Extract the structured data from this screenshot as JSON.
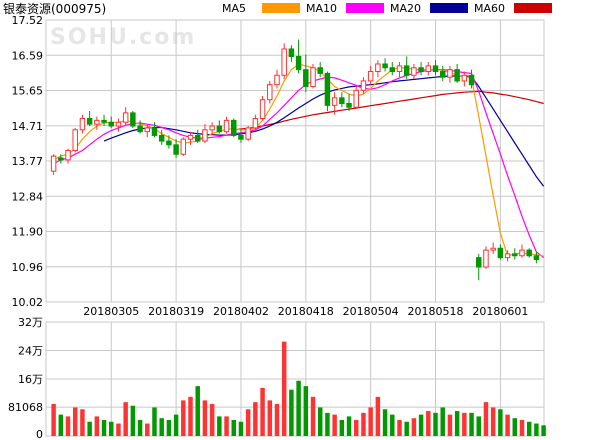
{
  "title": "银泰资源(000975)",
  "watermark": "SOHU.com",
  "colors": {
    "up": "#ff3333",
    "down": "#009900",
    "grid": "#c8c8c8",
    "MA5": "#ff9900",
    "MA10": "#ff00ff",
    "MA20": "#000099",
    "MA60": "#cc0000"
  },
  "legend": [
    "MA5",
    "MA10",
    "MA20",
    "MA60"
  ],
  "chart_data": [
    {
      "type": "candlestick",
      "title": "银泰资源(000975)",
      "ylim": [
        10.02,
        17.52
      ],
      "yticks": [
        "17.52",
        "16.59",
        "15.65",
        "14.71",
        "13.77",
        "12.84",
        "11.90",
        "10.96",
        "10.02"
      ],
      "xticks": [
        "20180305",
        "20180319",
        "20180402",
        "20180418",
        "20180504",
        "20180518",
        "20180601"
      ],
      "xtick_index": [
        8,
        17,
        26,
        35,
        44,
        53,
        62
      ],
      "candles": [
        {
          "o": 13.5,
          "h": 13.95,
          "l": 13.4,
          "c": 13.9
        },
        {
          "o": 13.85,
          "h": 13.95,
          "l": 13.7,
          "c": 13.8
        },
        {
          "o": 13.8,
          "h": 14.1,
          "l": 13.7,
          "c": 14.05
        },
        {
          "o": 14.05,
          "h": 14.65,
          "l": 14.0,
          "c": 14.6
        },
        {
          "o": 14.6,
          "h": 15.0,
          "l": 14.5,
          "c": 14.9
        },
        {
          "o": 14.9,
          "h": 15.1,
          "l": 14.7,
          "c": 14.75
        },
        {
          "o": 14.75,
          "h": 14.95,
          "l": 14.6,
          "c": 14.85
        },
        {
          "o": 14.85,
          "h": 15.0,
          "l": 14.7,
          "c": 14.8
        },
        {
          "o": 14.8,
          "h": 14.95,
          "l": 14.65,
          "c": 14.7
        },
        {
          "o": 14.7,
          "h": 14.9,
          "l": 14.55,
          "c": 14.8
        },
        {
          "o": 14.8,
          "h": 15.2,
          "l": 14.7,
          "c": 15.05
        },
        {
          "o": 15.05,
          "h": 15.1,
          "l": 14.65,
          "c": 14.7
        },
        {
          "o": 14.7,
          "h": 14.85,
          "l": 14.5,
          "c": 14.55
        },
        {
          "o": 14.55,
          "h": 14.75,
          "l": 14.4,
          "c": 14.65
        },
        {
          "o": 14.65,
          "h": 14.8,
          "l": 14.4,
          "c": 14.45
        },
        {
          "o": 14.45,
          "h": 14.6,
          "l": 14.2,
          "c": 14.3
        },
        {
          "o": 14.3,
          "h": 14.45,
          "l": 14.1,
          "c": 14.2
        },
        {
          "o": 14.2,
          "h": 14.35,
          "l": 13.85,
          "c": 13.95
        },
        {
          "o": 13.95,
          "h": 14.4,
          "l": 13.9,
          "c": 14.35
        },
        {
          "o": 14.35,
          "h": 14.55,
          "l": 14.2,
          "c": 14.45
        },
        {
          "o": 14.45,
          "h": 14.6,
          "l": 14.25,
          "c": 14.3
        },
        {
          "o": 14.3,
          "h": 14.75,
          "l": 14.25,
          "c": 14.6
        },
        {
          "o": 14.6,
          "h": 14.8,
          "l": 14.45,
          "c": 14.7
        },
        {
          "o": 14.7,
          "h": 14.85,
          "l": 14.5,
          "c": 14.55
        },
        {
          "o": 14.55,
          "h": 14.95,
          "l": 14.5,
          "c": 14.85
        },
        {
          "o": 14.85,
          "h": 14.9,
          "l": 14.4,
          "c": 14.45
        },
        {
          "o": 14.45,
          "h": 14.6,
          "l": 14.25,
          "c": 14.35
        },
        {
          "o": 14.35,
          "h": 14.7,
          "l": 14.3,
          "c": 14.65
        },
        {
          "o": 14.65,
          "h": 15.0,
          "l": 14.6,
          "c": 14.9
        },
        {
          "o": 14.9,
          "h": 15.5,
          "l": 14.85,
          "c": 15.4
        },
        {
          "o": 15.4,
          "h": 15.9,
          "l": 15.3,
          "c": 15.8
        },
        {
          "o": 15.8,
          "h": 16.2,
          "l": 15.7,
          "c": 16.05
        },
        {
          "o": 16.05,
          "h": 16.9,
          "l": 15.95,
          "c": 16.75
        },
        {
          "o": 16.75,
          "h": 16.85,
          "l": 16.4,
          "c": 16.55
        },
        {
          "o": 16.55,
          "h": 17.0,
          "l": 16.1,
          "c": 16.2
        },
        {
          "o": 16.2,
          "h": 16.6,
          "l": 15.6,
          "c": 15.75
        },
        {
          "o": 15.75,
          "h": 16.35,
          "l": 15.7,
          "c": 16.25
        },
        {
          "o": 16.25,
          "h": 16.4,
          "l": 16.0,
          "c": 16.1
        },
        {
          "o": 16.1,
          "h": 16.15,
          "l": 15.1,
          "c": 15.25
        },
        {
          "o": 15.25,
          "h": 15.6,
          "l": 15.0,
          "c": 15.45
        },
        {
          "o": 15.45,
          "h": 15.6,
          "l": 15.2,
          "c": 15.3
        },
        {
          "o": 15.3,
          "h": 15.55,
          "l": 15.1,
          "c": 15.2
        },
        {
          "o": 15.2,
          "h": 15.8,
          "l": 15.15,
          "c": 15.65
        },
        {
          "o": 15.65,
          "h": 16.0,
          "l": 15.55,
          "c": 15.9
        },
        {
          "o": 15.9,
          "h": 16.3,
          "l": 15.8,
          "c": 16.15
        },
        {
          "o": 16.15,
          "h": 16.45,
          "l": 16.0,
          "c": 16.35
        },
        {
          "o": 16.35,
          "h": 16.5,
          "l": 16.15,
          "c": 16.25
        },
        {
          "o": 16.25,
          "h": 16.4,
          "l": 16.05,
          "c": 16.15
        },
        {
          "o": 16.15,
          "h": 16.4,
          "l": 16.0,
          "c": 16.3
        },
        {
          "o": 16.3,
          "h": 16.55,
          "l": 15.95,
          "c": 16.05
        },
        {
          "o": 16.05,
          "h": 16.35,
          "l": 15.95,
          "c": 16.25
        },
        {
          "o": 16.25,
          "h": 16.4,
          "l": 16.05,
          "c": 16.15
        },
        {
          "o": 16.15,
          "h": 16.4,
          "l": 16.05,
          "c": 16.3
        },
        {
          "o": 16.3,
          "h": 16.45,
          "l": 16.05,
          "c": 16.15
        },
        {
          "o": 16.15,
          "h": 16.3,
          "l": 15.9,
          "c": 16.0
        },
        {
          "o": 16.0,
          "h": 16.3,
          "l": 15.85,
          "c": 16.2
        },
        {
          "o": 16.2,
          "h": 16.35,
          "l": 15.85,
          "c": 15.9
        },
        {
          "o": 15.9,
          "h": 16.15,
          "l": 15.75,
          "c": 16.05
        },
        {
          "o": 16.05,
          "h": 16.2,
          "l": 15.7,
          "c": 15.8
        },
        {
          "o": 11.2,
          "h": 11.3,
          "l": 10.6,
          "c": 10.95
        },
        {
          "o": 10.95,
          "h": 11.5,
          "l": 10.9,
          "c": 11.4
        },
        {
          "o": 11.4,
          "h": 11.6,
          "l": 11.3,
          "c": 11.45
        },
        {
          "o": 11.45,
          "h": 11.55,
          "l": 11.15,
          "c": 11.2
        },
        {
          "o": 11.2,
          "h": 11.4,
          "l": 11.1,
          "c": 11.3
        },
        {
          "o": 11.3,
          "h": 11.45,
          "l": 11.15,
          "c": 11.25
        },
        {
          "o": 11.25,
          "h": 11.55,
          "l": 11.2,
          "c": 11.4
        },
        {
          "o": 11.4,
          "h": 11.45,
          "l": 11.2,
          "c": 11.25
        },
        {
          "o": 11.25,
          "h": 11.35,
          "l": 11.05,
          "c": 11.15
        }
      ],
      "ma": {
        "MA5": [
          13.8,
          13.9,
          13.95,
          14.1,
          14.35,
          14.55,
          14.7,
          14.78,
          14.8,
          14.8,
          14.85,
          14.8,
          14.75,
          14.7,
          14.63,
          14.5,
          14.4,
          14.3,
          14.25,
          14.27,
          14.3,
          14.4,
          14.5,
          14.55,
          14.62,
          14.62,
          14.6,
          14.6,
          14.65,
          14.85,
          15.15,
          15.5,
          15.9,
          16.2,
          16.35,
          16.3,
          16.25,
          16.15,
          15.95,
          15.75,
          15.65,
          15.55,
          15.5,
          15.55,
          15.7,
          15.9,
          16.05,
          16.2,
          16.25,
          16.25,
          16.2,
          16.2,
          16.2,
          16.2,
          16.18,
          16.12,
          16.05,
          16.02,
          15.98,
          14.95,
          13.9,
          12.85,
          11.85,
          11.25,
          11.3,
          11.32,
          11.3,
          11.28,
          11.24
        ],
        "MA10": [
          13.7,
          13.8,
          13.85,
          13.95,
          14.05,
          14.2,
          14.35,
          14.48,
          14.58,
          14.65,
          14.72,
          14.76,
          14.78,
          14.75,
          14.72,
          14.66,
          14.6,
          14.52,
          14.45,
          14.4,
          14.38,
          14.38,
          14.4,
          14.42,
          14.46,
          14.5,
          14.52,
          14.55,
          14.6,
          14.7,
          14.88,
          15.05,
          15.25,
          15.45,
          15.65,
          15.8,
          15.9,
          15.95,
          16.0,
          15.98,
          15.92,
          15.85,
          15.78,
          15.7,
          15.68,
          15.72,
          15.8,
          15.9,
          15.98,
          16.05,
          16.1,
          16.15,
          16.18,
          16.2,
          16.2,
          16.18,
          16.15,
          16.12,
          16.1,
          15.62,
          15.05,
          14.5,
          13.95,
          13.38,
          12.85,
          12.3,
          11.8,
          11.35,
          11.2
        ],
        "MA20": [
          null,
          null,
          null,
          null,
          null,
          null,
          null,
          14.3,
          14.38,
          14.45,
          14.52,
          14.58,
          14.62,
          14.65,
          14.66,
          14.66,
          14.63,
          14.6,
          14.56,
          14.52,
          14.5,
          14.48,
          14.47,
          14.46,
          14.46,
          14.47,
          14.49,
          14.52,
          14.56,
          14.62,
          14.7,
          14.8,
          14.92,
          15.05,
          15.18,
          15.3,
          15.42,
          15.52,
          15.6,
          15.66,
          15.7,
          15.74,
          15.76,
          15.78,
          15.8,
          15.82,
          15.85,
          15.88,
          15.9,
          15.92,
          15.94,
          15.96,
          15.98,
          16.0,
          16.02,
          16.03,
          16.03,
          16.03,
          16.02,
          15.75,
          15.45,
          15.15,
          14.85,
          14.55,
          14.25,
          13.95,
          13.65,
          13.35,
          13.1
        ],
        "MA60": [
          null,
          null,
          null,
          null,
          null,
          null,
          null,
          null,
          null,
          null,
          null,
          null,
          null,
          null,
          null,
          null,
          null,
          null,
          null,
          null,
          null,
          null,
          null,
          null,
          null,
          14.6,
          14.62,
          14.64,
          14.67,
          14.7,
          14.74,
          14.78,
          14.83,
          14.88,
          14.92,
          14.96,
          15.0,
          15.03,
          15.06,
          15.09,
          15.12,
          15.15,
          15.18,
          15.21,
          15.24,
          15.27,
          15.3,
          15.33,
          15.36,
          15.39,
          15.42,
          15.45,
          15.48,
          15.51,
          15.54,
          15.56,
          15.58,
          15.6,
          15.61,
          15.62,
          15.6,
          15.58,
          15.55,
          15.52,
          15.48,
          15.44,
          15.4,
          15.35,
          15.3
        ]
      }
    },
    {
      "type": "bar",
      "title": "",
      "ylim": [
        0,
        320000
      ],
      "yticks": [
        "32万",
        "24万",
        "16万",
        "81068",
        "0"
      ],
      "volumes": [
        90000,
        60000,
        55000,
        80000,
        75000,
        40000,
        55000,
        45000,
        40000,
        35000,
        95000,
        85000,
        45000,
        35000,
        80000,
        50000,
        45000,
        60000,
        100000,
        110000,
        140000,
        100000,
        90000,
        55000,
        55000,
        45000,
        40000,
        75000,
        95000,
        135000,
        100000,
        90000,
        265000,
        130000,
        155000,
        140000,
        110000,
        80000,
        65000,
        60000,
        45000,
        55000,
        45000,
        65000,
        80000,
        110000,
        75000,
        60000,
        45000,
        40000,
        50000,
        60000,
        70000,
        65000,
        80000,
        60000,
        70000,
        65000,
        65000,
        55000,
        95000,
        80000,
        75000,
        60000,
        50000,
        45000,
        40000,
        35000,
        30000
      ],
      "vol_up": [
        true,
        false,
        true,
        true,
        true,
        false,
        true,
        false,
        false,
        true,
        true,
        false,
        false,
        true,
        false,
        false,
        false,
        false,
        true,
        true,
        false,
        true,
        true,
        false,
        true,
        false,
        false,
        true,
        true,
        true,
        true,
        true,
        true,
        false,
        false,
        false,
        true,
        false,
        false,
        true,
        false,
        false,
        true,
        true,
        true,
        true,
        false,
        false,
        true,
        false,
        true,
        false,
        true,
        false,
        false,
        true,
        false,
        true,
        false,
        false,
        true,
        true,
        false,
        true,
        false,
        true,
        false,
        false,
        false
      ]
    }
  ]
}
